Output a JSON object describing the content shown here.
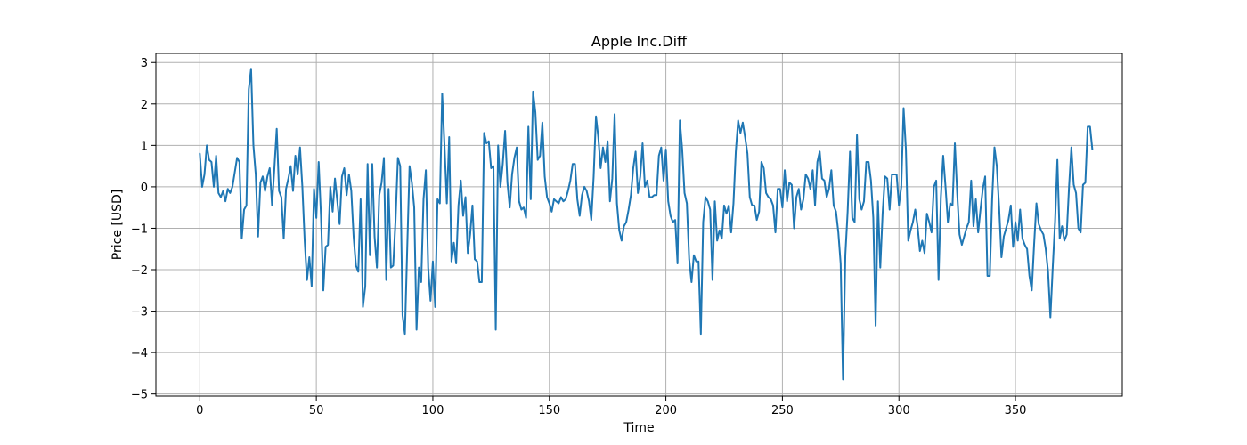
{
  "chart_data": {
    "type": "line",
    "title": "Apple Inc.Diff",
    "xlabel": "Time",
    "ylabel": "Price [USD]",
    "xlim": [
      -18.85,
      395.85
    ],
    "ylim": [
      -5.05,
      3.22
    ],
    "xticks": [
      0,
      50,
      100,
      150,
      200,
      250,
      300,
      350
    ],
    "yticks": [
      -5,
      -4,
      -3,
      -2,
      -1,
      0,
      1,
      2,
      3
    ],
    "grid": true,
    "legend": "none",
    "series": [
      {
        "color": "#1f77b4",
        "x_start": 0,
        "x_step": 1,
        "values": [
          0.8,
          0.0,
          0.3,
          1.0,
          0.65,
          0.6,
          0.0,
          0.75,
          -0.15,
          -0.25,
          -0.1,
          -0.35,
          -0.05,
          -0.15,
          0.0,
          0.35,
          0.7,
          0.6,
          -1.25,
          -0.55,
          -0.45,
          2.35,
          2.85,
          1.0,
          0.3,
          -1.2,
          0.1,
          0.25,
          -0.1,
          0.25,
          0.45,
          -0.45,
          0.45,
          1.4,
          -0.1,
          -0.25,
          -1.25,
          -0.05,
          0.2,
          0.5,
          -0.1,
          0.75,
          0.3,
          0.95,
          0.0,
          -1.3,
          -2.25,
          -1.7,
          -2.4,
          -0.05,
          -0.75,
          0.6,
          -0.7,
          -2.5,
          -1.45,
          -1.4,
          0.0,
          -0.6,
          0.2,
          -0.35,
          -0.9,
          0.25,
          0.45,
          -0.2,
          0.3,
          -0.1,
          -1.2,
          -1.9,
          -2.05,
          -0.3,
          -2.9,
          -2.4,
          0.55,
          -1.65,
          0.55,
          -1.2,
          -1.95,
          -0.2,
          0.1,
          0.7,
          -2.25,
          -0.05,
          -1.95,
          -1.9,
          -0.8,
          0.7,
          0.5,
          -3.1,
          -3.55,
          -1.5,
          0.5,
          0.1,
          -0.5,
          -3.45,
          -1.95,
          -2.3,
          -0.3,
          0.4,
          -1.95,
          -2.75,
          -1.8,
          -2.9,
          -0.3,
          -0.4,
          2.25,
          1.0,
          -0.4,
          1.2,
          -1.8,
          -1.35,
          -1.85,
          -0.45,
          0.15,
          -0.7,
          -0.25,
          -1.6,
          -1.15,
          -0.45,
          -1.75,
          -1.8,
          -2.3,
          -2.3,
          1.3,
          1.05,
          1.1,
          0.45,
          0.5,
          -3.45,
          1.0,
          0.0,
          0.55,
          1.35,
          0.1,
          -0.5,
          0.3,
          0.7,
          0.95,
          -0.35,
          -0.55,
          -0.5,
          -0.75,
          1.45,
          -0.3,
          2.3,
          1.8,
          0.65,
          0.75,
          1.55,
          0.25,
          -0.25,
          -0.4,
          -0.6,
          -0.3,
          -0.35,
          -0.4,
          -0.25,
          -0.35,
          -0.3,
          -0.1,
          0.15,
          0.55,
          0.55,
          -0.3,
          -0.7,
          -0.2,
          0.0,
          -0.1,
          -0.35,
          -0.8,
          0.25,
          1.7,
          1.2,
          0.45,
          0.95,
          0.6,
          1.1,
          -0.35,
          0.2,
          1.75,
          -0.4,
          -1.05,
          -1.3,
          -0.95,
          -0.85,
          -0.55,
          -0.2,
          0.45,
          0.85,
          -0.15,
          0.25,
          1.05,
          0.0,
          0.15,
          -0.25,
          -0.25,
          -0.2,
          -0.2,
          0.75,
          0.95,
          0.15,
          0.9,
          -0.35,
          -0.7,
          -0.85,
          -0.8,
          -1.85,
          1.6,
          0.9,
          -0.15,
          -0.4,
          -1.75,
          -2.3,
          -1.65,
          -1.8,
          -1.8,
          -3.55,
          -0.85,
          -0.25,
          -0.35,
          -0.55,
          -2.25,
          -0.35,
          -1.3,
          -1.05,
          -1.25,
          -0.45,
          -0.65,
          -0.45,
          -1.1,
          -0.4,
          0.85,
          1.6,
          1.3,
          1.55,
          1.2,
          0.8,
          -0.25,
          -0.45,
          -0.45,
          -0.8,
          -0.6,
          0.6,
          0.45,
          -0.15,
          -0.25,
          -0.3,
          -0.45,
          -1.1,
          -0.05,
          -0.05,
          -0.5,
          0.4,
          -0.35,
          0.1,
          0.05,
          -1.0,
          -0.25,
          -0.05,
          -0.55,
          -0.3,
          0.3,
          0.2,
          -0.05,
          0.4,
          -0.45,
          0.6,
          0.85,
          0.2,
          0.15,
          -0.25,
          -0.05,
          0.4,
          -0.45,
          -0.6,
          -1.1,
          -1.85,
          -4.65,
          -1.65,
          -0.6,
          0.85,
          -0.75,
          -0.85,
          1.25,
          -0.3,
          -0.55,
          -0.35,
          0.6,
          0.6,
          0.15,
          -0.75,
          -3.35,
          -0.35,
          -1.95,
          -0.65,
          0.25,
          0.2,
          -0.55,
          0.3,
          0.3,
          0.3,
          -0.45,
          0.0,
          1.9,
          0.9,
          -1.3,
          -1.05,
          -0.85,
          -0.55,
          -0.95,
          -1.55,
          -1.3,
          -1.6,
          -0.65,
          -0.85,
          -1.1,
          0.0,
          0.15,
          -2.25,
          -0.25,
          0.75,
          0.0,
          -0.85,
          -0.4,
          -0.45,
          1.05,
          -0.15,
          -1.15,
          -1.4,
          -1.2,
          -1.0,
          -0.85,
          0.15,
          -0.95,
          -0.3,
          -1.1,
          -0.55,
          -0.05,
          0.25,
          -2.15,
          -2.15,
          -0.3,
          0.95,
          0.5,
          -0.5,
          -1.7,
          -1.2,
          -1.0,
          -0.8,
          -0.45,
          -1.45,
          -0.85,
          -1.3,
          -0.55,
          -1.25,
          -1.4,
          -1.5,
          -2.15,
          -2.5,
          -1.4,
          -0.4,
          -0.9,
          -1.05,
          -1.15,
          -1.5,
          -2.05,
          -3.15,
          -1.95,
          -0.85,
          0.65,
          -1.25,
          -0.95,
          -1.3,
          -1.15,
          0.0,
          0.95,
          0.05,
          -0.15,
          -1.0,
          -1.1,
          0.05,
          0.1,
          1.45,
          1.45,
          0.9
        ]
      }
    ]
  }
}
